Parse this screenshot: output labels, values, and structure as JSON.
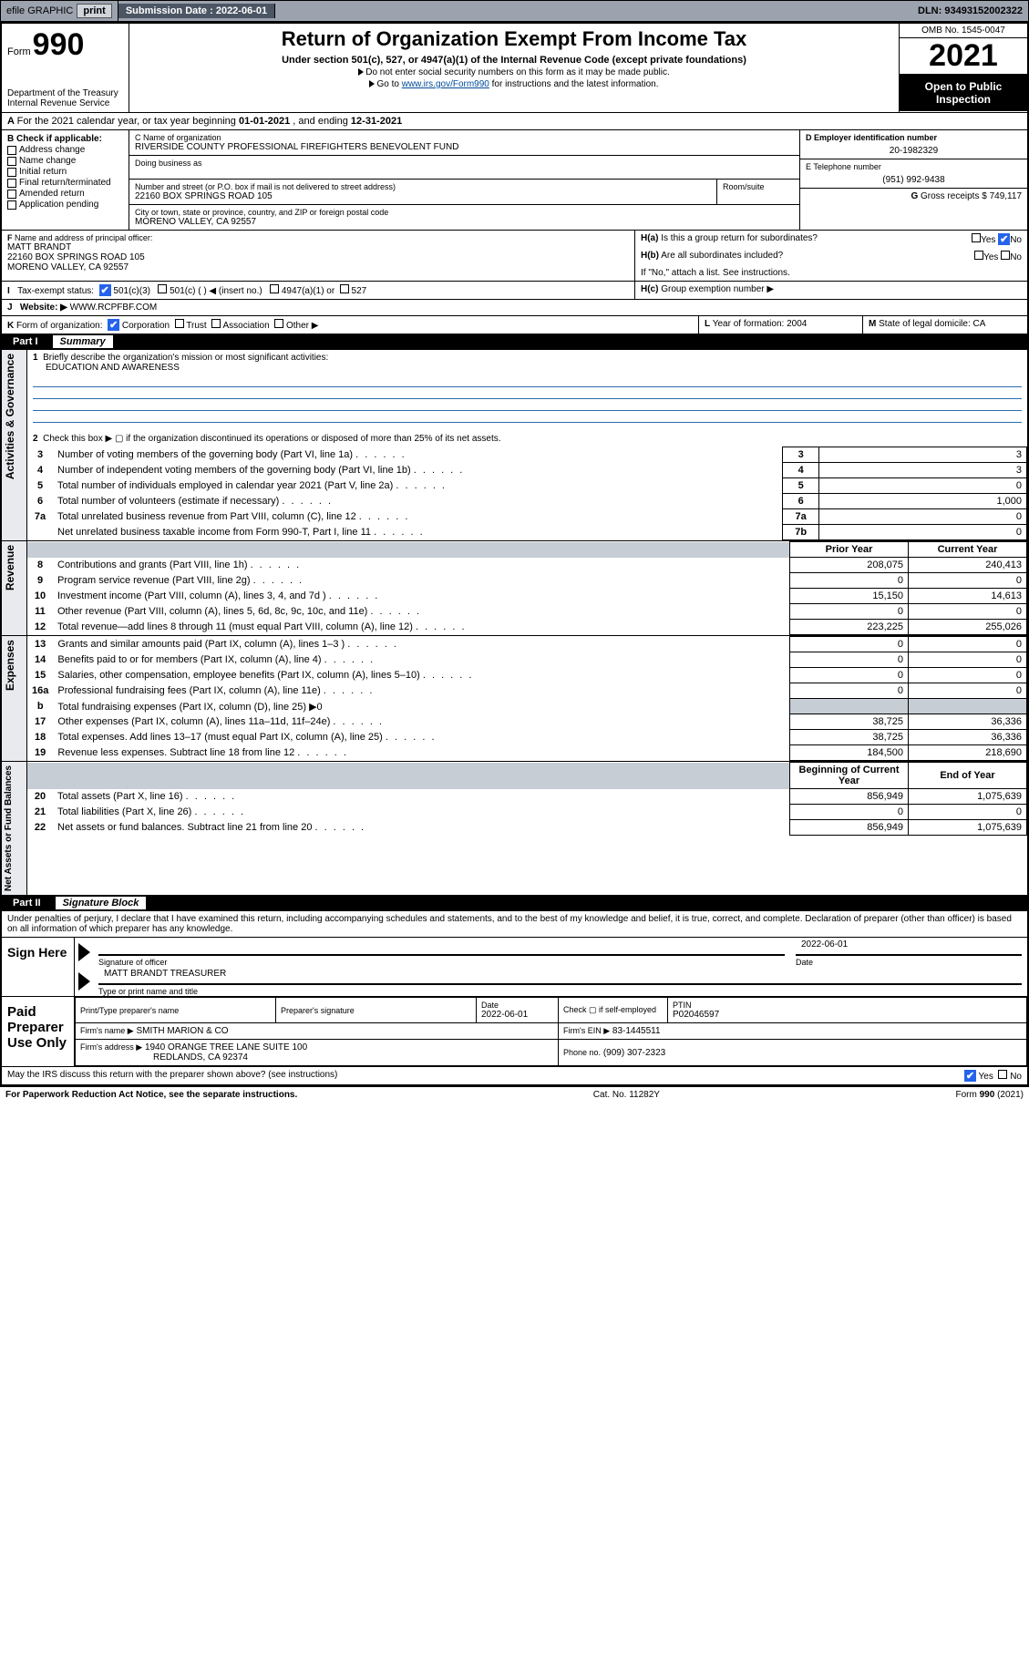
{
  "topbar": {
    "efile": "efile GRAPHIC",
    "print": "print",
    "sub_label": "Submission Date : 2022-06-01",
    "dln": "DLN: 93493152002322"
  },
  "header": {
    "form_word": "Form",
    "form_num": "990",
    "title": "Return of Organization Exempt From Income Tax",
    "sub1": "Under section 501(c), 527, or 4947(a)(1) of the Internal Revenue Code (except private foundations)",
    "sub2": "Do not enter social security numbers on this form as it may be made public.",
    "sub3_pre": "Go to ",
    "sub3_link": "www.irs.gov/Form990",
    "sub3_post": " for instructions and the latest information.",
    "omb": "OMB No. 1545-0047",
    "year": "2021",
    "open": "Open to Public Inspection",
    "dept": "Department of the Treasury",
    "irs": "Internal Revenue Service"
  },
  "lineA": {
    "text_pre": "For the 2021 calendar year, or tax year beginning ",
    "begin": "01-01-2021",
    "mid": " , and ending ",
    "end": "12-31-2021"
  },
  "boxB": {
    "label": "Check if applicable:",
    "opts": [
      "Address change",
      "Name change",
      "Initial return",
      "Final return/terminated",
      "Amended return",
      "Application pending"
    ]
  },
  "boxC": {
    "label": "Name of organization",
    "name": "RIVERSIDE COUNTY PROFESSIONAL FIREFIGHTERS BENEVOLENT FUND",
    "dba_label": "Doing business as",
    "addr_label": "Number and street (or P.O. box if mail is not delivered to street address)",
    "room_label": "Room/suite",
    "addr": "22160 BOX SPRINGS ROAD 105",
    "city_label": "City or town, state or province, country, and ZIP or foreign postal code",
    "city": "MORENO VALLEY, CA  92557"
  },
  "boxD": {
    "label": "Employer identification number",
    "val": "20-1982329"
  },
  "boxE": {
    "label": "Telephone number",
    "val": "(951) 992-9438"
  },
  "boxG": {
    "label": "Gross receipts $",
    "val": "749,117"
  },
  "boxF": {
    "label": "Name and address of principal officer:",
    "name": "MATT BRANDT",
    "addr1": "22160 BOX SPRINGS ROAD 105",
    "addr2": "MORENO VALLEY, CA  92557"
  },
  "boxH": {
    "ha": "Is this a group return for subordinates?",
    "hb": "Are all subordinates included?",
    "hnote": "If \"No,\" attach a list. See instructions.",
    "hc": "Group exemption number ▶",
    "yes": "Yes",
    "no": "No"
  },
  "boxI": {
    "label": "Tax-exempt status:",
    "o1": "501(c)(3)",
    "o2": "501(c) (   ) ◀ (insert no.)",
    "o3": "4947(a)(1) or",
    "o4": "527"
  },
  "boxJ": {
    "label": "Website: ▶",
    "val": "WWW.RCPFBF.COM"
  },
  "boxK": {
    "label": "Form of organization:",
    "o1": "Corporation",
    "o2": "Trust",
    "o3": "Association",
    "o4": "Other ▶"
  },
  "boxL": {
    "label": "Year of formation:",
    "val": "2004"
  },
  "boxM": {
    "label": "State of legal domicile:",
    "val": "CA"
  },
  "part1": {
    "label": "Part I",
    "title": "Summary"
  },
  "summary": {
    "l1_label": "Briefly describe the organization's mission or most significant activities:",
    "l1_val": "EDUCATION AND AWARENESS",
    "l2": "Check this box ▶ ▢  if the organization discontinued its operations or disposed of more than 25% of its net assets.",
    "rows_gov": [
      {
        "n": "3",
        "d": "Number of voting members of the governing body (Part VI, line 1a)",
        "c": "3",
        "v": "3"
      },
      {
        "n": "4",
        "d": "Number of independent voting members of the governing body (Part VI, line 1b)",
        "c": "4",
        "v": "3"
      },
      {
        "n": "5",
        "d": "Total number of individuals employed in calendar year 2021 (Part V, line 2a)",
        "c": "5",
        "v": "0"
      },
      {
        "n": "6",
        "d": "Total number of volunteers (estimate if necessary)",
        "c": "6",
        "v": "1,000"
      },
      {
        "n": "7a",
        "d": "Total unrelated business revenue from Part VIII, column (C), line 12",
        "c": "7a",
        "v": "0"
      },
      {
        "n": "",
        "d": "Net unrelated business taxable income from Form 990-T, Part I, line 11",
        "c": "7b",
        "v": "0"
      }
    ],
    "col_prior": "Prior Year",
    "col_curr": "Current Year",
    "rows_rev": [
      {
        "n": "8",
        "d": "Contributions and grants (Part VIII, line 1h)",
        "p": "208,075",
        "c": "240,413"
      },
      {
        "n": "9",
        "d": "Program service revenue (Part VIII, line 2g)",
        "p": "0",
        "c": "0"
      },
      {
        "n": "10",
        "d": "Investment income (Part VIII, column (A), lines 3, 4, and 7d )",
        "p": "15,150",
        "c": "14,613"
      },
      {
        "n": "11",
        "d": "Other revenue (Part VIII, column (A), lines 5, 6d, 8c, 9c, 10c, and 11e)",
        "p": "0",
        "c": "0"
      },
      {
        "n": "12",
        "d": "Total revenue—add lines 8 through 11 (must equal Part VIII, column (A), line 12)",
        "p": "223,225",
        "c": "255,026"
      }
    ],
    "rows_exp": [
      {
        "n": "13",
        "d": "Grants and similar amounts paid (Part IX, column (A), lines 1–3 )",
        "p": "0",
        "c": "0"
      },
      {
        "n": "14",
        "d": "Benefits paid to or for members (Part IX, column (A), line 4)",
        "p": "0",
        "c": "0"
      },
      {
        "n": "15",
        "d": "Salaries, other compensation, employee benefits (Part IX, column (A), lines 5–10)",
        "p": "0",
        "c": "0"
      },
      {
        "n": "16a",
        "d": "Professional fundraising fees (Part IX, column (A), line 11e)",
        "p": "0",
        "c": "0"
      },
      {
        "n": "b",
        "d": "Total fundraising expenses (Part IX, column (D), line 25) ▶0",
        "p": "",
        "c": "",
        "shade": true
      },
      {
        "n": "17",
        "d": "Other expenses (Part IX, column (A), lines 11a–11d, 11f–24e)",
        "p": "38,725",
        "c": "36,336"
      },
      {
        "n": "18",
        "d": "Total expenses. Add lines 13–17 (must equal Part IX, column (A), line 25)",
        "p": "38,725",
        "c": "36,336"
      },
      {
        "n": "19",
        "d": "Revenue less expenses. Subtract line 18 from line 12",
        "p": "184,500",
        "c": "218,690"
      }
    ],
    "col_beg": "Beginning of Current Year",
    "col_end": "End of Year",
    "rows_net": [
      {
        "n": "20",
        "d": "Total assets (Part X, line 16)",
        "p": "856,949",
        "c": "1,075,639"
      },
      {
        "n": "21",
        "d": "Total liabilities (Part X, line 26)",
        "p": "0",
        "c": "0"
      },
      {
        "n": "22",
        "d": "Net assets or fund balances. Subtract line 21 from line 20",
        "p": "856,949",
        "c": "1,075,639"
      }
    ],
    "side_gov": "Activities & Governance",
    "side_rev": "Revenue",
    "side_exp": "Expenses",
    "side_net": "Net Assets or Fund Balances"
  },
  "part2": {
    "label": "Part II",
    "title": "Signature Block"
  },
  "sig": {
    "decl": "Under penalties of perjury, I declare that I have examined this return, including accompanying schedules and statements, and to the best of my knowledge and belief, it is true, correct, and complete. Declaration of preparer (other than officer) is based on all information of which preparer has any knowledge.",
    "sign_here": "Sign Here",
    "sig_officer": "Signature of officer",
    "date_label": "Date",
    "date_val": "2022-06-01",
    "name_title": "MATT BRANDT TREASURER",
    "name_label": "Type or print name and title",
    "paid": "Paid Preparer Use Only",
    "pt_name_label": "Print/Type preparer's name",
    "pt_sig_label": "Preparer's signature",
    "pt_date_label": "Date",
    "pt_date": "2022-06-01",
    "pt_check": "Check ▢ if self-employed",
    "ptin_label": "PTIN",
    "ptin": "P02046597",
    "firm_name_label": "Firm's name   ▶",
    "firm_name": "SMITH MARION & CO",
    "firm_ein_label": "Firm's EIN ▶",
    "firm_ein": "83-1445511",
    "firm_addr_label": "Firm's address ▶",
    "firm_addr1": "1940 ORANGE TREE LANE SUITE 100",
    "firm_addr2": "REDLANDS, CA  92374",
    "phone_label": "Phone no.",
    "phone": "(909) 307-2323",
    "discuss": "May the IRS discuss this return with the preparer shown above? (see instructions)"
  },
  "footer": {
    "left": "For Paperwork Reduction Act Notice, see the separate instructions.",
    "mid": "Cat. No. 11282Y",
    "right": "Form 990 (2021)"
  }
}
